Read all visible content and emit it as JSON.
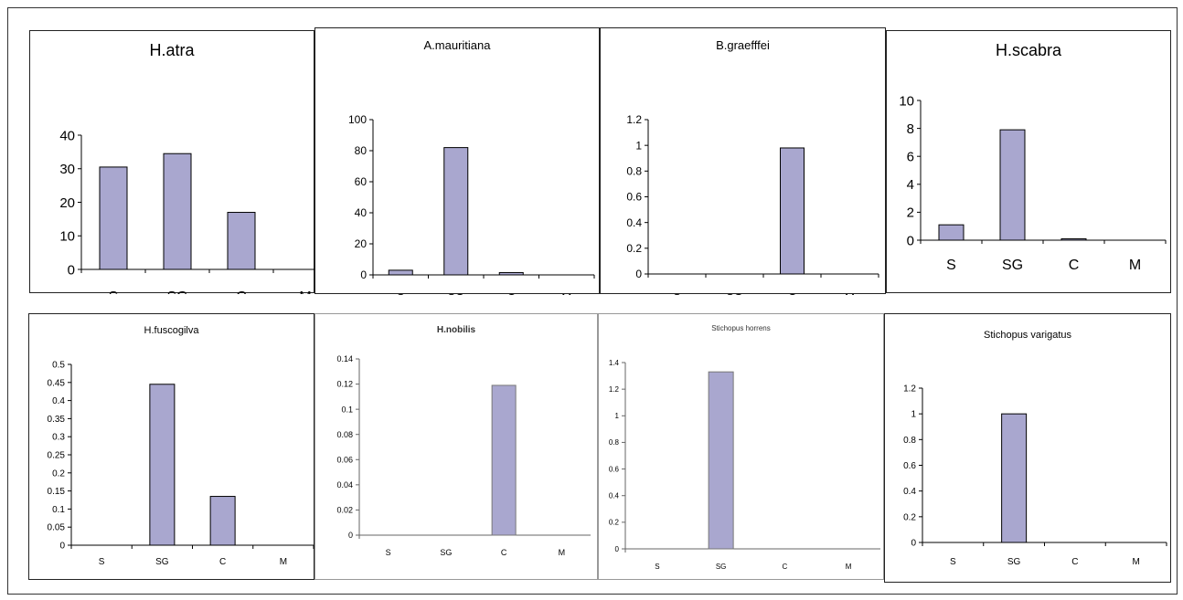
{
  "chart_data": [
    {
      "type": "bar",
      "title": "H.atra",
      "categories": [
        "S",
        "SG",
        "C",
        "M"
      ],
      "values": [
        30.5,
        34.5,
        17,
        0
      ],
      "ylim": [
        0,
        40
      ],
      "yticks": [
        "0",
        "10",
        "20",
        "30",
        "40"
      ],
      "bar_color": "#a9a7cf"
    },
    {
      "type": "bar",
      "title": "A.mauritiana",
      "categories": [
        "S",
        "SG",
        "C",
        "M"
      ],
      "values": [
        3,
        82,
        1.5,
        0
      ],
      "ylim": [
        0,
        100
      ],
      "yticks": [
        "0",
        "20",
        "40",
        "60",
        "80",
        "100"
      ],
      "bar_color": "#a9a7cf"
    },
    {
      "type": "bar",
      "title": "B.graefffei",
      "categories": [
        "S",
        "SG",
        "C",
        "M"
      ],
      "values": [
        0,
        0,
        0.98,
        0
      ],
      "ylim": [
        0,
        1.2
      ],
      "yticks": [
        "0",
        "0.2",
        "0.4",
        "0.6",
        "0.8",
        "1",
        "1.2"
      ],
      "bar_color": "#a9a7cf"
    },
    {
      "type": "bar",
      "title": "H.scabra",
      "categories": [
        "S",
        "SG",
        "C",
        "M"
      ],
      "values": [
        1.1,
        7.9,
        0.1,
        0
      ],
      "ylim": [
        0,
        10
      ],
      "yticks": [
        "0",
        "2",
        "4",
        "6",
        "8",
        "10"
      ],
      "bar_color": "#a9a7cf"
    },
    {
      "type": "bar",
      "title": "H.fuscogilva",
      "categories": [
        "S",
        "SG",
        "C",
        "M"
      ],
      "values": [
        0,
        0.445,
        0.135,
        0
      ],
      "ylim": [
        0,
        0.5
      ],
      "yticks": [
        "0",
        "0.05",
        "0.1",
        "0.15",
        "0.2",
        "0.25",
        "0.3",
        "0.35",
        "0.4",
        "0.45",
        "0.5"
      ],
      "bar_color": "#a9a7cf"
    },
    {
      "type": "bar",
      "title": "H.nobilis",
      "categories": [
        "S",
        "SG",
        "C",
        "M"
      ],
      "values": [
        0,
        0,
        0.119,
        0
      ],
      "ylim": [
        0,
        0.14
      ],
      "yticks": [
        "0",
        "0.02",
        "0.04",
        "0.06",
        "0.08",
        "0.1",
        "0.12",
        "0.14"
      ],
      "bar_color": "#a9a7cf"
    },
    {
      "type": "bar",
      "title": "Stichopus horrens",
      "categories": [
        "S",
        "SG",
        "C",
        "M"
      ],
      "values": [
        0,
        1.33,
        0,
        0
      ],
      "ylim": [
        0,
        1.4
      ],
      "yticks": [
        "0",
        "0.2",
        "0.4",
        "0.6",
        "0.8",
        "1",
        "1.2",
        "1.4"
      ],
      "bar_color": "#a9a7cf"
    },
    {
      "type": "bar",
      "title": "Stichopus varigatus",
      "categories": [
        "S",
        "SG",
        "C",
        "M"
      ],
      "values": [
        0,
        1,
        0,
        0
      ],
      "ylim": [
        0,
        1.2
      ],
      "yticks": [
        "0",
        "0.2",
        "0.4",
        "0.6",
        "0.8",
        "1",
        "1.2"
      ],
      "bar_color": "#a9a7cf"
    }
  ]
}
